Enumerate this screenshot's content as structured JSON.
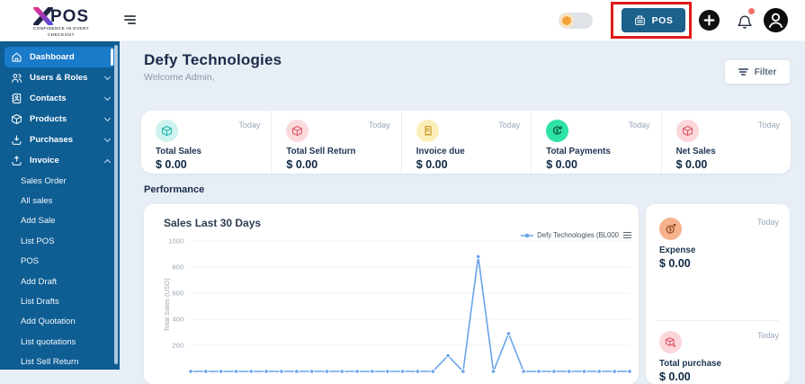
{
  "logo": {
    "text": "POS",
    "tagline_line1": "CONFIDENCE IN EVERY",
    "tagline_line2": "CHECKOUT"
  },
  "header": {
    "pos_button_label": "POS"
  },
  "sidebar": {
    "items": [
      {
        "label": "Dashboard",
        "icon": "home",
        "active": true
      },
      {
        "label": "Users & Roles",
        "icon": "users",
        "chevron": "down"
      },
      {
        "label": "Contacts",
        "icon": "contacts",
        "chevron": "down"
      },
      {
        "label": "Products",
        "icon": "products",
        "chevron": "down"
      },
      {
        "label": "Purchases",
        "icon": "purchases",
        "chevron": "down"
      },
      {
        "label": "Invoice",
        "icon": "invoice",
        "chevron": "up",
        "expanded": true
      }
    ],
    "invoice_children": [
      "Sales Order",
      "All sales",
      "Add Sale",
      "List POS",
      "POS",
      "Add Draft",
      "List Drafts",
      "Add Quotation",
      "List quotations",
      "List Sell Return"
    ]
  },
  "main": {
    "title": "Defy Technologies",
    "subtitle": "Welcome Admin,",
    "filter_label": "Filter",
    "performance_heading": "Performance",
    "stats": [
      {
        "label": "Total Sales",
        "value": "$ 0.00",
        "period": "Today",
        "icon": "package-icon",
        "icon_bg": "#cdf2ef",
        "icon_color": "#1fb6ae"
      },
      {
        "label": "Total Sell Return",
        "value": "$ 0.00",
        "period": "Today",
        "icon": "package-icon",
        "icon_bg": "#fadadd",
        "icon_color": "#e05a68"
      },
      {
        "label": "Invoice due",
        "value": "$ 0.00",
        "period": "Today",
        "icon": "receipt-icon",
        "icon_bg": "#fceebb",
        "icon_color": "#c79a1e"
      },
      {
        "label": "Total Payments",
        "value": "$ 0.00",
        "period": "Today",
        "icon": "payments-icon",
        "icon_bg": "#2de3a6",
        "icon_color": "#0a4a3a"
      },
      {
        "label": "Net Sales",
        "value": "$ 0.00",
        "period": "Today",
        "icon": "package-icon",
        "icon_bg": "#fbd6da",
        "icon_color": "#e05a68"
      }
    ],
    "side_cards": [
      {
        "label": "Expense",
        "value": "$ 0.00",
        "period": "Today",
        "icon": "expense-coin-icon",
        "icon_bg": "#f6b18f",
        "icon_color": "#8c3c14"
      },
      {
        "label": "Total purchase",
        "value": "$ 0.00",
        "period": "Today",
        "icon": "purchase-box-icon",
        "icon_bg": "#fbd6da",
        "icon_color": "#e05a68"
      }
    ]
  },
  "chart_data": {
    "type": "line",
    "title": "Sales Last 30 Days",
    "ylabel": "Total Sales (USD)",
    "legend": "Defy Technologies (BL000",
    "legend_position": "top-right",
    "grid": true,
    "line_color": "#6aa3e9",
    "ylim": [
      0,
      1000
    ],
    "yticks": [
      200,
      400,
      600,
      800,
      1000
    ],
    "x": [
      1,
      2,
      3,
      4,
      5,
      6,
      7,
      8,
      9,
      10,
      11,
      12,
      13,
      14,
      15,
      16,
      17,
      18,
      19,
      20,
      21,
      22,
      23,
      24,
      25,
      26,
      27,
      28,
      29,
      30
    ],
    "values": [
      0,
      0,
      0,
      0,
      0,
      0,
      0,
      0,
      0,
      0,
      0,
      0,
      0,
      0,
      0,
      0,
      0,
      120,
      0,
      880,
      0,
      290,
      0,
      0,
      0,
      0,
      0,
      0,
      0,
      0
    ]
  }
}
